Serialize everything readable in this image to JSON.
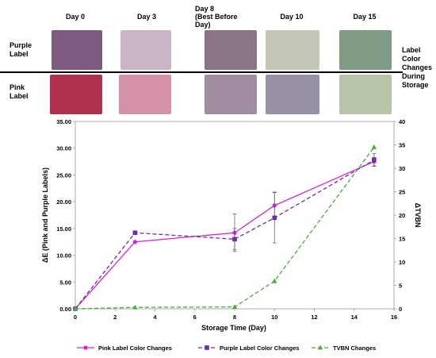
{
  "photo_panel": {
    "days": [
      "Day 0",
      "Day 3",
      "Day 8\n(Best Before\nDay)",
      "Day 10",
      "Day 15"
    ],
    "rows": [
      "Purple\nLabel",
      "Pink\nLabel"
    ],
    "side_label": "Label\nColor\nChanges\nDuring\nStorage",
    "colors": {
      "purple_row": [
        "#7d5a80",
        "#c9b6c4",
        "#8a7585",
        "#c4c6b8",
        "#7f9b86"
      ],
      "pink_row": [
        "#b0304f",
        "#d493a6",
        "#a08ea0",
        "#9a91a6",
        "#b8c4a8"
      ]
    }
  },
  "chart_data": {
    "type": "line",
    "xlabel": "Storage Time (Day)",
    "ylabel": "ΔE (Pink and Purple Labels)",
    "y2label": "ΔTVBN",
    "xlim": [
      0,
      16
    ],
    "ylim": [
      0,
      35
    ],
    "y2lim": [
      0,
      40
    ],
    "xticks": [
      "0",
      "2",
      "4",
      "6",
      "8",
      "10",
      "12",
      "14",
      "16"
    ],
    "yticks": [
      "0.00",
      "5.00",
      "10.00",
      "15.00",
      "20.00",
      "25.00",
      "30.00",
      "35.00"
    ],
    "y2ticks": [
      "0",
      "5",
      "10",
      "15",
      "20",
      "25",
      "30",
      "35",
      "40"
    ],
    "series": [
      {
        "name": "Pink Label Color Changes",
        "axis": "left",
        "color": "#e020d8",
        "dash": "solid",
        "marker": "circle",
        "x": [
          0,
          3,
          8,
          10,
          15
        ],
        "y": [
          0,
          12.5,
          14.2,
          19.3,
          27.5
        ],
        "err": [
          0,
          0,
          3.5,
          2.5,
          0.8
        ]
      },
      {
        "name": "Purple Label Color Changes",
        "axis": "left",
        "color": "#6a2fa8",
        "dash": "dash",
        "marker": "square",
        "x": [
          0,
          3,
          8,
          10,
          15
        ],
        "y": [
          0,
          14.2,
          13.0,
          17.0,
          27.8
        ],
        "err": [
          0,
          0,
          2.0,
          4.7,
          1.2
        ]
      },
      {
        "name": "TVBN Changes",
        "axis": "right",
        "color": "#4caa3c",
        "dash": "dash",
        "marker": "triangle",
        "x": [
          0,
          3,
          8,
          10,
          15
        ],
        "y": [
          0,
          0.3,
          0.4,
          5.9,
          34.5
        ],
        "err": [
          0,
          0,
          0,
          0,
          0
        ]
      }
    ],
    "legend_position": "bottom",
    "grid": false
  }
}
